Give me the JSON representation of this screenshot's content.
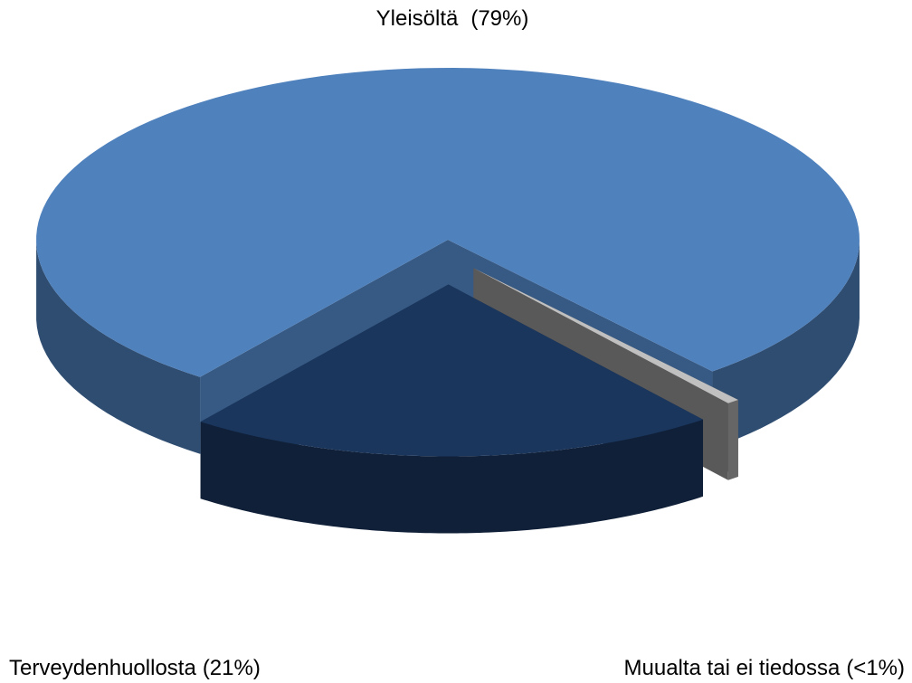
{
  "chart_data": {
    "type": "pie3d",
    "categories": [
      "Yleisöltä",
      "Terveydenhuollosta",
      "Muualta tai ei tiedossa"
    ],
    "values": [
      79,
      21,
      0.5
    ],
    "value_labels": [
      "(79%)",
      "(21%)",
      "(<1%)"
    ],
    "colors": [
      "#4f81bd",
      "#1b365d",
      "#7f7f7f"
    ]
  }
}
